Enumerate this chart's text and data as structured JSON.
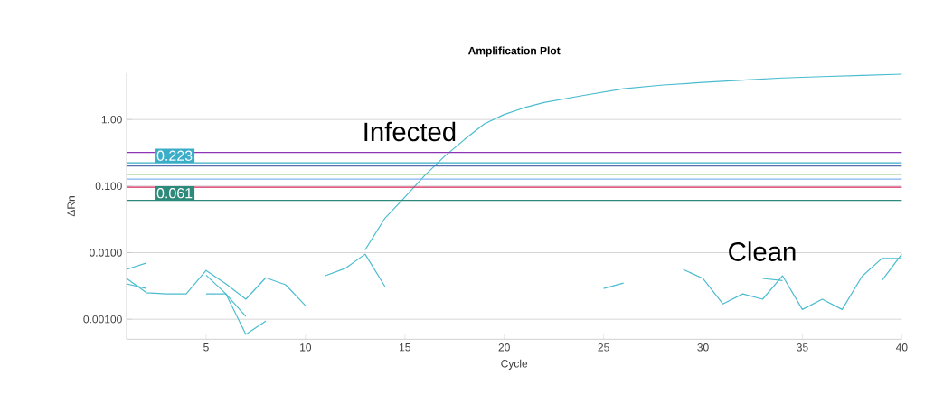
{
  "chart_data": {
    "type": "line",
    "title": "Amplification Plot",
    "xlabel": "Cycle",
    "ylabel": "ΔRn",
    "log": "y",
    "grid": "y",
    "xlim": [
      1,
      40
    ],
    "xticks": [
      5,
      10,
      15,
      20,
      25,
      30,
      35,
      40
    ],
    "ylim": [
      0.0005,
      5
    ],
    "yticks": [
      {
        "value": 1,
        "label": "1.00"
      },
      {
        "value": 0.1,
        "label": "0.100"
      },
      {
        "value": 0.01,
        "label": "0.0100"
      },
      {
        "value": 0.001,
        "label": "0.00100"
      }
    ],
    "series": [
      {
        "color": "#4bbccf",
        "x": [
          13,
          14,
          15,
          16,
          17,
          18,
          19,
          20,
          21,
          22,
          24,
          26,
          28,
          30,
          32,
          34,
          36,
          38,
          40
        ],
        "values": [
          0.011,
          0.033,
          0.068,
          0.144,
          0.28,
          0.5,
          0.86,
          1.19,
          1.5,
          1.8,
          2.3,
          2.9,
          3.3,
          3.6,
          3.9,
          4.2,
          4.4,
          4.6,
          4.8
        ]
      },
      {
        "color": "#4bbccf",
        "x": [
          1,
          2,
          3,
          4,
          5,
          6,
          7,
          8,
          9,
          10
        ],
        "values": [
          0.0041,
          0.0025,
          0.0024,
          0.0024,
          0.0054,
          0.0034,
          0.002,
          0.0042,
          0.0033,
          0.0016
        ]
      },
      {
        "color": "#4bbccf",
        "x": [
          1,
          2
        ],
        "values": [
          0.0034,
          0.0029
        ]
      },
      {
        "color": "#4bbccf",
        "x": [
          1,
          2
        ],
        "values": [
          0.0056,
          0.007
        ]
      },
      {
        "color": "#4bbccf",
        "x": [
          5,
          6,
          7
        ],
        "values": [
          0.0046,
          0.0024,
          0.0011
        ]
      },
      {
        "color": "#4bbccf",
        "x": [
          5,
          6,
          7,
          8
        ],
        "values": [
          0.0024,
          0.0024,
          0.00059,
          0.00094
        ]
      },
      {
        "color": "#4bbccf",
        "x": [
          11,
          12,
          13,
          14
        ],
        "values": [
          0.0045,
          0.0058,
          0.0095,
          0.0031
        ]
      },
      {
        "color": "#4bbccf",
        "x": [
          25,
          26
        ],
        "values": [
          0.0029,
          0.0035
        ]
      },
      {
        "color": "#4bbccf",
        "x": [
          29,
          30,
          31,
          32,
          33,
          34,
          35,
          36,
          37,
          38,
          39,
          40
        ],
        "values": [
          0.0056,
          0.0041,
          0.0017,
          0.0024,
          0.002,
          0.0045,
          0.0014,
          0.002,
          0.0014,
          0.0044,
          0.0082,
          0.0082
        ]
      },
      {
        "color": "#4bbccf",
        "x": [
          33,
          34
        ],
        "values": [
          0.0041,
          0.0038
        ]
      },
      {
        "color": "#4bbccf",
        "x": [
          39,
          40
        ],
        "values": [
          0.0038,
          0.0095
        ]
      }
    ],
    "ref_lines": [
      {
        "axis": "y",
        "value": 0.32,
        "color": "#8b35b5"
      },
      {
        "axis": "y",
        "value": 0.223,
        "label": "0.223",
        "color": "#3aaec8"
      },
      {
        "axis": "y",
        "value": 0.2,
        "color": "#5a6fb0"
      },
      {
        "axis": "y",
        "value": 0.15,
        "color": "#8cc57a"
      },
      {
        "axis": "y",
        "value": 0.127,
        "color": "#7fb5f0"
      },
      {
        "axis": "y",
        "value": 0.096,
        "color": "#d6275a"
      },
      {
        "axis": "y",
        "value": 0.061,
        "label": "0.061",
        "color": "#2d8a7a"
      }
    ],
    "annotations": [
      "Infected",
      "Clean"
    ]
  }
}
